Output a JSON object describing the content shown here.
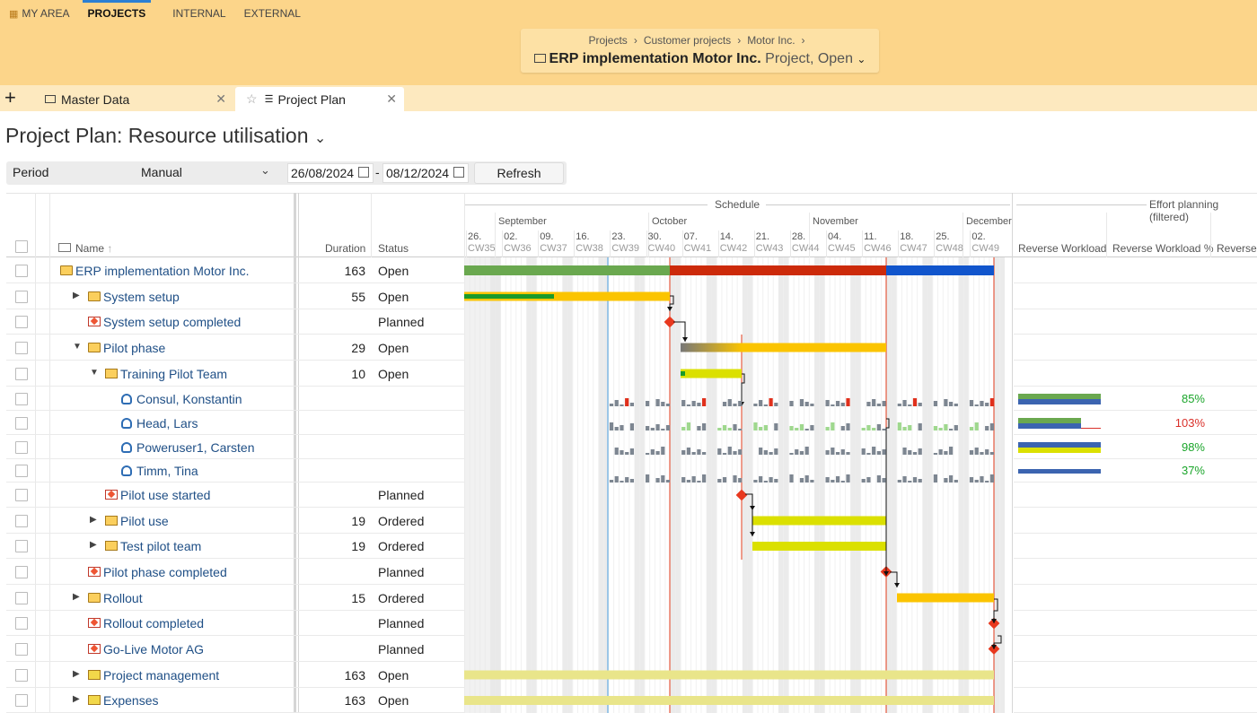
{
  "topnav": {
    "items": [
      {
        "label": "MY AREA",
        "icon": "grid-icon",
        "active": false
      },
      {
        "label": "PROJECTS",
        "active": true
      },
      {
        "label": "INTERNAL",
        "active": false
      },
      {
        "label": "EXTERNAL",
        "active": false
      }
    ]
  },
  "project": {
    "breadcrumb": [
      "Projects",
      "Customer projects",
      "Motor Inc."
    ],
    "title": "ERP implementation Motor Inc.",
    "subtitle": "Project, Open"
  },
  "tabs": [
    {
      "label": "Master Data",
      "icon": "folder-icon",
      "active": false
    },
    {
      "label": "Project Plan",
      "icon": "gantt-icon",
      "active": true
    }
  ],
  "page": {
    "title": "Project Plan: Resource utilisation"
  },
  "filter": {
    "period_label": "Period",
    "period_value": "Manual",
    "date_from": "26/08/2024",
    "date_to": "08/12/2024",
    "refresh_label": "Refresh"
  },
  "grid": {
    "headers": {
      "name": "Name",
      "duration": "Duration",
      "status": "Status",
      "schedule": "Schedule",
      "effort_planning": "Effort planning (filtered)",
      "reverse_workload": "Reverse Workload",
      "reverse_workload_pct": "Reverse Workload %",
      "reverse": "Reverse"
    },
    "months": [
      "September",
      "October",
      "November",
      "December"
    ],
    "weeks": [
      {
        "day": "26.",
        "cw": "CW35"
      },
      {
        "day": "02.",
        "cw": "CW36"
      },
      {
        "day": "09.",
        "cw": "CW37"
      },
      {
        "day": "16.",
        "cw": "CW38"
      },
      {
        "day": "23.",
        "cw": "CW39"
      },
      {
        "day": "30.",
        "cw": "CW40"
      },
      {
        "day": "07.",
        "cw": "CW41"
      },
      {
        "day": "14.",
        "cw": "CW42"
      },
      {
        "day": "21.",
        "cw": "CW43"
      },
      {
        "day": "28.",
        "cw": "CW44"
      },
      {
        "day": "04.",
        "cw": "CW45"
      },
      {
        "day": "11.",
        "cw": "CW46"
      },
      {
        "day": "18.",
        "cw": "CW47"
      },
      {
        "day": "25.",
        "cw": "CW48"
      },
      {
        "day": "02.",
        "cw": "CW49"
      }
    ],
    "rows": [
      {
        "name": "ERP implementation Motor Inc.",
        "duration": "163",
        "status": "Open",
        "icon": "folder-icon",
        "level": 0,
        "expander": "none"
      },
      {
        "name": "System setup",
        "duration": "55",
        "status": "Open",
        "icon": "folder-icon",
        "level": 1,
        "expander": "collapsed"
      },
      {
        "name": "System setup completed",
        "duration": "",
        "status": "Planned",
        "icon": "milestone-icon",
        "level": 1,
        "expander": "none"
      },
      {
        "name": "Pilot phase",
        "duration": "29",
        "status": "Open",
        "icon": "folder-icon",
        "level": 1,
        "expander": "expanded"
      },
      {
        "name": "Training Pilot Team",
        "duration": "10",
        "status": "Open",
        "icon": "task-icon",
        "level": 2,
        "expander": "expanded"
      },
      {
        "name": "Consul, Konstantin",
        "duration": "",
        "status": "",
        "icon": "person-icon",
        "level": 3,
        "expander": "none",
        "pct": "85%",
        "pct_color": "#1aa52a"
      },
      {
        "name": "Head, Lars",
        "duration": "",
        "status": "",
        "icon": "person-icon",
        "level": 3,
        "expander": "none",
        "pct": "103%",
        "pct_color": "#d9302a"
      },
      {
        "name": "Poweruser1, Carsten",
        "duration": "",
        "status": "",
        "icon": "person-icon",
        "level": 3,
        "expander": "none",
        "pct": "98%",
        "pct_color": "#1aa52a"
      },
      {
        "name": "Timm, Tina",
        "duration": "",
        "status": "",
        "icon": "person-icon",
        "level": 3,
        "expander": "none",
        "pct": "37%",
        "pct_color": "#1aa52a"
      },
      {
        "name": "Pilot use started",
        "duration": "",
        "status": "Planned",
        "icon": "milestone-icon",
        "level": 2,
        "expander": "none"
      },
      {
        "name": "Pilot use",
        "duration": "19",
        "status": "Ordered",
        "icon": "task-icon",
        "level": 2,
        "expander": "collapsed"
      },
      {
        "name": "Test pilot team",
        "duration": "19",
        "status": "Ordered",
        "icon": "task-icon",
        "level": 2,
        "expander": "collapsed"
      },
      {
        "name": "Pilot phase completed",
        "duration": "",
        "status": "Planned",
        "icon": "milestone-icon",
        "level": 1,
        "expander": "none"
      },
      {
        "name": "Rollout",
        "duration": "15",
        "status": "Ordered",
        "icon": "folder-icon",
        "level": 1,
        "expander": "collapsed"
      },
      {
        "name": "Rollout completed",
        "duration": "",
        "status": "Planned",
        "icon": "milestone-icon",
        "level": 1,
        "expander": "none"
      },
      {
        "name": "Go-Live Motor AG",
        "duration": "",
        "status": "Planned",
        "icon": "milestone-icon",
        "level": 1,
        "expander": "none"
      },
      {
        "name": "Project management",
        "duration": "163",
        "status": "Open",
        "icon": "recurring-icon",
        "level": 1,
        "expander": "collapsed"
      },
      {
        "name": "Expenses",
        "duration": "163",
        "status": "Open",
        "icon": "recurring-icon",
        "level": 1,
        "expander": "collapsed"
      }
    ]
  },
  "colors": {
    "header_bg": "#fcd58a",
    "green_bar": "#6aa84f",
    "red_bar": "#cc2a0a",
    "blue_bar": "#1155cc",
    "yellow_bar": "#fbc400",
    "lime_bar": "#dbe000",
    "milestone": "#e8381e",
    "today_line": "#4a9fe0",
    "deadline_line": "#e03a1a"
  }
}
